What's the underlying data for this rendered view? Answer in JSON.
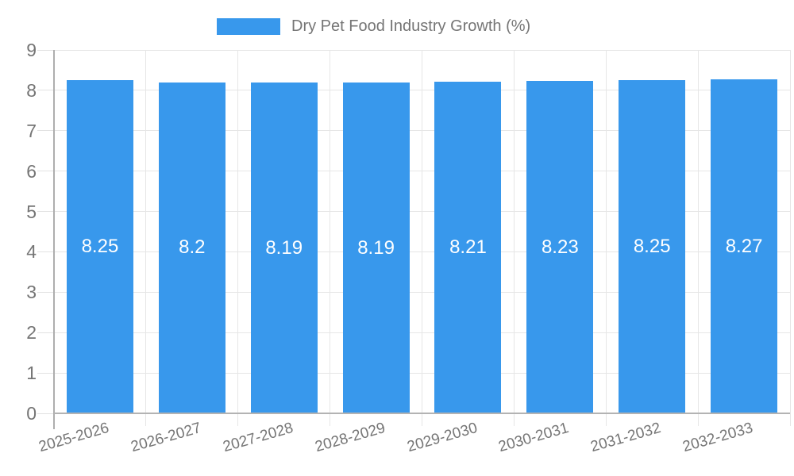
{
  "legend": {
    "label": "Dry Pet Food Industry Growth (%)"
  },
  "chart_data": {
    "type": "bar",
    "title": "Dry Pet Food Industry Growth (%)",
    "categories": [
      "2025-2026",
      "2026-2027",
      "2027-2028",
      "2028-2029",
      "2029-2030",
      "2030-2031",
      "2031-2032",
      "2032-2033"
    ],
    "values": [
      8.25,
      8.2,
      8.19,
      8.19,
      8.21,
      8.23,
      8.25,
      8.27
    ],
    "bar_labels": [
      "8.25",
      "8.2",
      "8.19",
      "8.19",
      "8.21",
      "8.23",
      "8.25",
      "8.27"
    ],
    "xlabel": "",
    "ylabel": "",
    "ylim": [
      0,
      9
    ],
    "yticks": [
      0,
      1,
      2,
      3,
      4,
      5,
      6,
      7,
      8,
      9
    ],
    "grid": true,
    "legend_position": "top",
    "bar_color": "#3898ec",
    "axis_label_color": "#757575",
    "value_label_color": "#ffffff",
    "gridline_color": "#e6e6e6"
  }
}
